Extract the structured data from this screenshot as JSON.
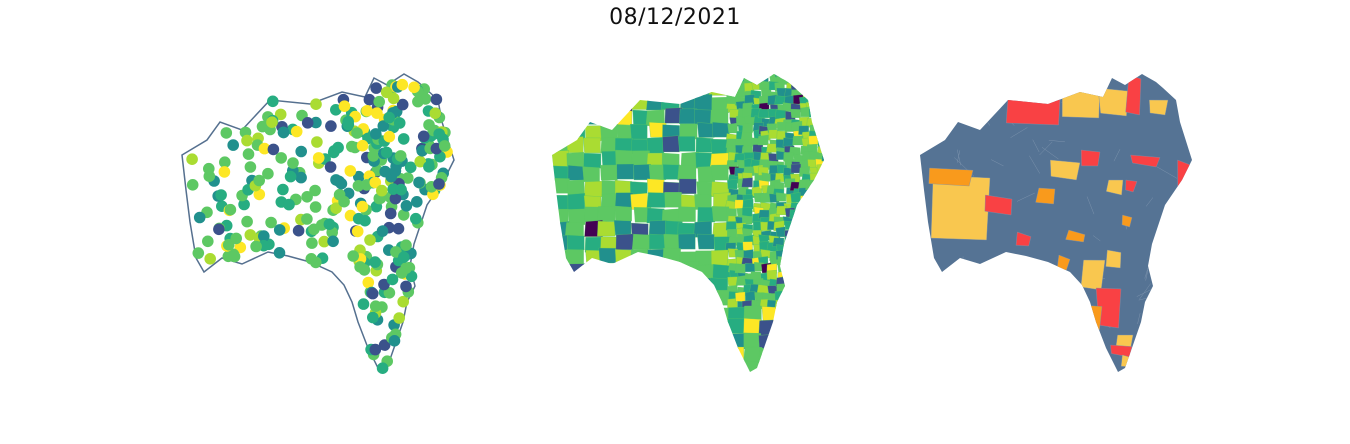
{
  "title": "08/12/2021",
  "palette": {
    "viridis": [
      "#440154",
      "#3b528b",
      "#21908d",
      "#27ad81",
      "#5dc863",
      "#aadc32",
      "#fde725"
    ],
    "points_weighted": [
      "#21908d",
      "#27ad81",
      "#27ad81",
      "#5dc863",
      "#5dc863",
      "#5dc863",
      "#aadc32",
      "#3b528b",
      "#21908d",
      "#fde725"
    ],
    "risk": {
      "base": "#557394",
      "yellow": "#f9c74f",
      "orange": "#f99a1c",
      "red": "#f94144",
      "grid": "#7c93ad"
    }
  },
  "panels": [
    {
      "name": "points-map",
      "style": "outline with colored points"
    },
    {
      "name": "choropleth-map",
      "style": "viridis choropleth"
    },
    {
      "name": "risk-map",
      "style": "categorical choropleth"
    }
  ]
}
